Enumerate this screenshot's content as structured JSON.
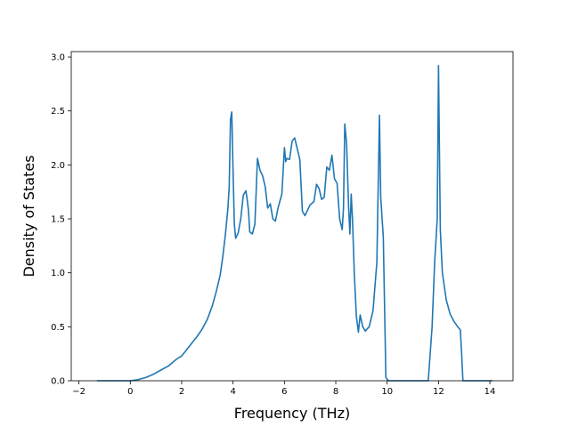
{
  "chart_data": {
    "type": "line",
    "xlabel": "Frequency (THz)",
    "ylabel": "Density of States",
    "xlim": [
      -2.3,
      14.9
    ],
    "ylim": [
      0.0,
      3.05
    ],
    "grid": false,
    "x_ticks": [
      -2,
      0,
      2,
      4,
      6,
      8,
      10,
      12,
      14
    ],
    "x_tick_labels": [
      "−2",
      "0",
      "2",
      "4",
      "6",
      "8",
      "10",
      "12",
      "14"
    ],
    "y_ticks": [
      0.0,
      0.5,
      1.0,
      1.5,
      2.0,
      2.5,
      3.0
    ],
    "y_tick_labels": [
      "0.0",
      "0.5",
      "1.0",
      "1.5",
      "2.0",
      "2.5",
      "3.0"
    ],
    "series": [
      {
        "color": "#1f77b4",
        "points": [
          [
            -1.3,
            0.0
          ],
          [
            -0.5,
            0.0
          ],
          [
            0.0,
            0.0
          ],
          [
            0.3,
            0.01
          ],
          [
            0.6,
            0.03
          ],
          [
            0.9,
            0.06
          ],
          [
            1.2,
            0.1
          ],
          [
            1.5,
            0.14
          ],
          [
            1.7,
            0.18
          ],
          [
            1.8,
            0.2
          ],
          [
            2.0,
            0.23
          ],
          [
            2.2,
            0.29
          ],
          [
            2.4,
            0.35
          ],
          [
            2.6,
            0.41
          ],
          [
            2.8,
            0.48
          ],
          [
            3.0,
            0.57
          ],
          [
            3.2,
            0.7
          ],
          [
            3.35,
            0.83
          ],
          [
            3.5,
            0.98
          ],
          [
            3.6,
            1.15
          ],
          [
            3.7,
            1.35
          ],
          [
            3.8,
            1.6
          ],
          [
            3.85,
            1.8
          ],
          [
            3.9,
            2.42
          ],
          [
            3.95,
            2.49
          ],
          [
            4.0,
            1.95
          ],
          [
            4.05,
            1.45
          ],
          [
            4.1,
            1.32
          ],
          [
            4.2,
            1.37
          ],
          [
            4.3,
            1.5
          ],
          [
            4.4,
            1.72
          ],
          [
            4.5,
            1.76
          ],
          [
            4.55,
            1.68
          ],
          [
            4.6,
            1.58
          ],
          [
            4.65,
            1.38
          ],
          [
            4.75,
            1.36
          ],
          [
            4.85,
            1.45
          ],
          [
            4.95,
            2.06
          ],
          [
            5.05,
            1.95
          ],
          [
            5.15,
            1.9
          ],
          [
            5.25,
            1.8
          ],
          [
            5.35,
            1.6
          ],
          [
            5.45,
            1.64
          ],
          [
            5.55,
            1.5
          ],
          [
            5.65,
            1.48
          ],
          [
            5.75,
            1.6
          ],
          [
            5.9,
            1.73
          ],
          [
            6.0,
            2.16
          ],
          [
            6.05,
            2.03
          ],
          [
            6.1,
            2.06
          ],
          [
            6.2,
            2.05
          ],
          [
            6.3,
            2.22
          ],
          [
            6.4,
            2.25
          ],
          [
            6.5,
            2.15
          ],
          [
            6.6,
            2.05
          ],
          [
            6.7,
            1.57
          ],
          [
            6.8,
            1.53
          ],
          [
            6.9,
            1.58
          ],
          [
            7.0,
            1.63
          ],
          [
            7.15,
            1.66
          ],
          [
            7.25,
            1.82
          ],
          [
            7.35,
            1.78
          ],
          [
            7.45,
            1.68
          ],
          [
            7.55,
            1.7
          ],
          [
            7.65,
            1.98
          ],
          [
            7.75,
            1.95
          ],
          [
            7.85,
            2.09
          ],
          [
            7.95,
            1.87
          ],
          [
            8.05,
            1.83
          ],
          [
            8.15,
            1.5
          ],
          [
            8.25,
            1.4
          ],
          [
            8.3,
            1.6
          ],
          [
            8.35,
            2.38
          ],
          [
            8.42,
            2.2
          ],
          [
            8.5,
            1.6
          ],
          [
            8.55,
            1.36
          ],
          [
            8.6,
            1.73
          ],
          [
            8.65,
            1.5
          ],
          [
            8.72,
            1.0
          ],
          [
            8.8,
            0.6
          ],
          [
            8.88,
            0.45
          ],
          [
            8.95,
            0.61
          ],
          [
            9.05,
            0.5
          ],
          [
            9.15,
            0.46
          ],
          [
            9.3,
            0.5
          ],
          [
            9.45,
            0.65
          ],
          [
            9.6,
            1.1
          ],
          [
            9.7,
            2.46
          ],
          [
            9.75,
            1.7
          ],
          [
            9.85,
            1.33
          ],
          [
            9.95,
            0.03
          ],
          [
            10.05,
            0.0
          ],
          [
            11.0,
            0.0
          ],
          [
            11.6,
            0.0
          ],
          [
            11.75,
            0.5
          ],
          [
            11.85,
            1.1
          ],
          [
            11.95,
            1.5
          ],
          [
            12.0,
            2.92
          ],
          [
            12.07,
            1.4
          ],
          [
            12.15,
            1.0
          ],
          [
            12.3,
            0.75
          ],
          [
            12.45,
            0.62
          ],
          [
            12.6,
            0.55
          ],
          [
            12.75,
            0.5
          ],
          [
            12.85,
            0.47
          ],
          [
            12.9,
            0.25
          ],
          [
            12.95,
            0.0
          ],
          [
            13.5,
            0.0
          ],
          [
            14.1,
            0.0
          ]
        ]
      }
    ]
  }
}
